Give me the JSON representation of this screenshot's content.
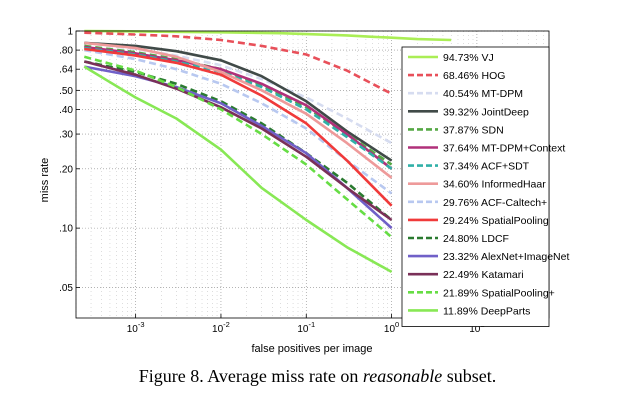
{
  "caption": {
    "prefix": "Figure 8. Average miss rate on ",
    "emph": "reasonable",
    "suffix": " subset."
  },
  "chart_data": {
    "type": "line",
    "title": "",
    "xlabel": "false positives per image",
    "ylabel": "miss rate",
    "x_scale": "log",
    "y_scale": "log",
    "xlim": [
      0.0002,
      70
    ],
    "ylim": [
      0.035,
      1
    ],
    "grid": true,
    "legend_position": "right",
    "x_ticks": [
      {
        "value": 0.001,
        "base": "10",
        "exp": "-3"
      },
      {
        "value": 0.01,
        "base": "10",
        "exp": "-2"
      },
      {
        "value": 0.1,
        "base": "10",
        "exp": "-1"
      },
      {
        "value": 1,
        "base": "10",
        "exp": "0"
      },
      {
        "value": 10,
        "base": "10",
        "exp": "1"
      }
    ],
    "y_ticks": [
      {
        "value": 1,
        "label": "1"
      },
      {
        "value": 0.8,
        "label": ".80"
      },
      {
        "value": 0.64,
        "label": ".64"
      },
      {
        "value": 0.5,
        "label": ".50"
      },
      {
        "value": 0.4,
        "label": ".40"
      },
      {
        "value": 0.3,
        "label": ".30"
      },
      {
        "value": 0.2,
        "label": ".20"
      },
      {
        "value": 0.1,
        "label": ".10"
      },
      {
        "value": 0.05,
        "label": ".05"
      }
    ],
    "series": [
      {
        "name": "94.73% VJ",
        "color": "#aaee55",
        "dash": "solid",
        "x": [
          0.00025,
          0.001,
          0.01,
          0.05,
          0.1,
          0.3,
          0.6,
          1,
          2,
          5
        ],
        "y": [
          1,
          0.995,
          0.985,
          0.975,
          0.965,
          0.95,
          0.935,
          0.925,
          0.91,
          0.9
        ]
      },
      {
        "name": "68.46% HOG",
        "color": "#e8505a",
        "dash": "dashed",
        "x": [
          0.00025,
          0.001,
          0.003,
          0.01,
          0.03,
          0.1,
          0.3,
          1
        ],
        "y": [
          0.98,
          0.96,
          0.94,
          0.9,
          0.84,
          0.76,
          0.63,
          0.48
        ]
      },
      {
        "name": "40.54% MT-DPM",
        "color": "#d6dcf0",
        "dash": "dashed",
        "x": [
          0.00025,
          0.001,
          0.003,
          0.01,
          0.03,
          0.1,
          0.3,
          1
        ],
        "y": [
          0.87,
          0.81,
          0.75,
          0.67,
          0.57,
          0.46,
          0.36,
          0.27
        ]
      },
      {
        "name": "39.32% JointDeep",
        "color": "#404a48",
        "dash": "solid",
        "x": [
          0.00025,
          0.001,
          0.003,
          0.01,
          0.03,
          0.1,
          0.3,
          1
        ],
        "y": [
          0.87,
          0.84,
          0.79,
          0.71,
          0.59,
          0.44,
          0.31,
          0.22
        ]
      },
      {
        "name": "37.87% SDN",
        "color": "#55a844",
        "dash": "dashed",
        "x": [
          0.00025,
          0.001,
          0.003,
          0.01,
          0.03,
          0.1,
          0.3,
          1
        ],
        "y": [
          0.84,
          0.78,
          0.72,
          0.64,
          0.53,
          0.41,
          0.3,
          0.21
        ]
      },
      {
        "name": "37.64% MT-DPM+Context",
        "color": "#b0307a",
        "dash": "solid",
        "x": [
          0.00025,
          0.001,
          0.003,
          0.01,
          0.03,
          0.1,
          0.3,
          1
        ],
        "y": [
          0.83,
          0.77,
          0.71,
          0.64,
          0.54,
          0.42,
          0.3,
          0.2
        ]
      },
      {
        "name": "37.34% ACF+SDT",
        "color": "#30b0a8",
        "dash": "dashed",
        "x": [
          0.00025,
          0.001,
          0.003,
          0.01,
          0.03,
          0.1,
          0.3,
          1
        ],
        "y": [
          0.82,
          0.76,
          0.7,
          0.62,
          0.52,
          0.4,
          0.29,
          0.2
        ]
      },
      {
        "name": "34.60% InformedHaar",
        "color": "#ee9a9a",
        "dash": "solid",
        "x": [
          0.00025,
          0.001,
          0.003,
          0.01,
          0.03,
          0.1,
          0.3,
          1
        ],
        "y": [
          0.87,
          0.82,
          0.74,
          0.62,
          0.5,
          0.38,
          0.27,
          0.18
        ]
      },
      {
        "name": "29.76% ACF-Caltech+",
        "color": "#b8c8f0",
        "dash": "dashed",
        "x": [
          0.00025,
          0.001,
          0.003,
          0.01,
          0.03,
          0.1,
          0.3,
          1
        ],
        "y": [
          0.8,
          0.72,
          0.64,
          0.54,
          0.43,
          0.32,
          0.22,
          0.15
        ]
      },
      {
        "name": "29.24% SpatialPooling",
        "color": "#f03a3a",
        "dash": "solid",
        "x": [
          0.00025,
          0.001,
          0.003,
          0.01,
          0.03,
          0.1,
          0.3,
          1
        ],
        "y": [
          0.81,
          0.75,
          0.69,
          0.6,
          0.47,
          0.34,
          0.22,
          0.13
        ]
      },
      {
        "name": "24.80% LDCF",
        "color": "#2a7a30",
        "dash": "dashed",
        "x": [
          0.00025,
          0.001,
          0.003,
          0.01,
          0.03,
          0.1,
          0.3,
          1
        ],
        "y": [
          0.7,
          0.62,
          0.54,
          0.44,
          0.34,
          0.24,
          0.17,
          0.11
        ]
      },
      {
        "name": "23.32% AlexNet+ImageNet",
        "color": "#7060c8",
        "dash": "solid",
        "x": [
          0.00025,
          0.001,
          0.003,
          0.01,
          0.03,
          0.1,
          0.3,
          1
        ],
        "y": [
          0.66,
          0.59,
          0.52,
          0.43,
          0.33,
          0.24,
          0.16,
          0.1
        ]
      },
      {
        "name": "22.49% Katamari",
        "color": "#7a3058",
        "dash": "solid",
        "x": [
          0.00025,
          0.001,
          0.003,
          0.01,
          0.03,
          0.1,
          0.3,
          1
        ],
        "y": [
          0.7,
          0.6,
          0.51,
          0.41,
          0.32,
          0.23,
          0.16,
          0.11
        ]
      },
      {
        "name": "21.89% SpatialPooling+",
        "color": "#66dd44",
        "dash": "dashed",
        "x": [
          0.00025,
          0.001,
          0.003,
          0.01,
          0.03,
          0.1,
          0.3,
          1
        ],
        "y": [
          0.74,
          0.63,
          0.52,
          0.4,
          0.3,
          0.21,
          0.14,
          0.09
        ]
      },
      {
        "name": "11.89% DeepParts",
        "color": "#88e855",
        "dash": "solid",
        "x": [
          0.00025,
          0.0005,
          0.001,
          0.003,
          0.01,
          0.03,
          0.1,
          0.3,
          1
        ],
        "y": [
          0.66,
          0.55,
          0.46,
          0.36,
          0.25,
          0.16,
          0.11,
          0.08,
          0.06
        ]
      }
    ]
  }
}
